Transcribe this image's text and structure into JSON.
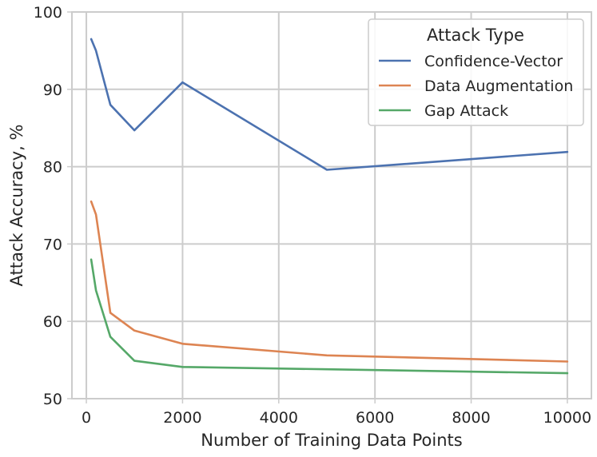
{
  "chart_data": {
    "type": "line",
    "xlabel": "Number of Training Data Points",
    "ylabel": "Attack Accuracy, %",
    "xlim": [
      -300,
      10500
    ],
    "ylim": [
      50,
      100
    ],
    "xticks": [
      0,
      2000,
      4000,
      6000,
      8000,
      10000
    ],
    "yticks": [
      50,
      60,
      70,
      80,
      90,
      100
    ],
    "x_tick_labels": [
      "0",
      "2000",
      "4000",
      "6000",
      "8000",
      "10000"
    ],
    "y_tick_labels": [
      "50",
      "60",
      "70",
      "80",
      "90",
      "100"
    ],
    "grid": true,
    "legend": {
      "title": "Attack Type",
      "placement": "top-right"
    },
    "series": [
      {
        "name": "Confidence-Vector",
        "color": "#4c72b0",
        "x": [
          100,
          200,
          500,
          1000,
          2000,
          5000,
          10000
        ],
        "y": [
          96.5,
          95.0,
          88.0,
          84.7,
          90.9,
          79.6,
          81.9
        ]
      },
      {
        "name": "Data Augmentation",
        "color": "#dd8452",
        "x": [
          100,
          200,
          500,
          1000,
          2000,
          5000,
          10000
        ],
        "y": [
          75.5,
          73.8,
          61.1,
          58.8,
          57.1,
          55.6,
          54.8
        ]
      },
      {
        "name": "Gap Attack",
        "color": "#55a868",
        "x": [
          100,
          200,
          500,
          1000,
          2000,
          5000,
          10000
        ],
        "y": [
          68.0,
          64.0,
          58.0,
          54.9,
          54.1,
          53.8,
          53.3
        ]
      }
    ]
  }
}
